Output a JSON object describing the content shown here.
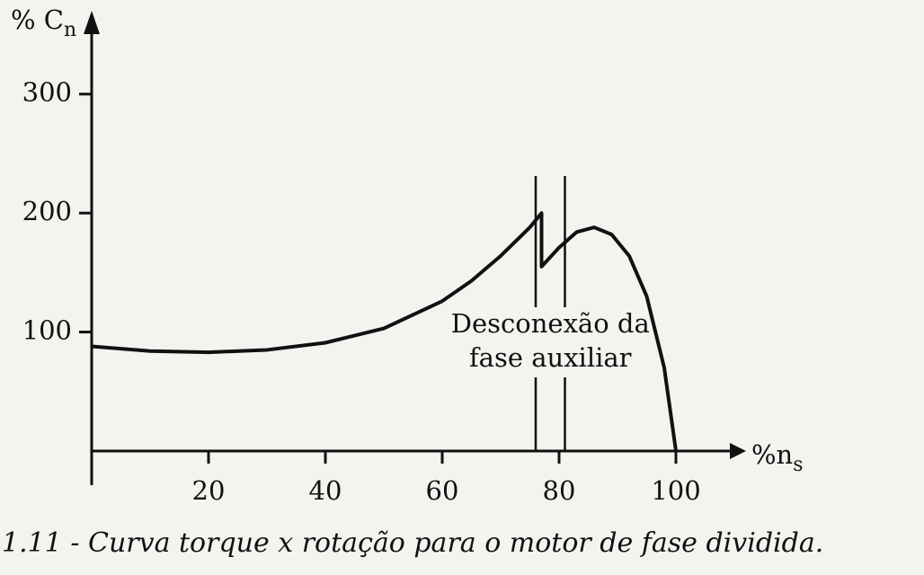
{
  "chart_data": {
    "type": "line",
    "y_label": {
      "main": "% C",
      "subscript": "n"
    },
    "x_label": {
      "main": "%n",
      "subscript": "s"
    },
    "annotation": [
      "Desconexão da",
      "fase auxiliar"
    ],
    "caption": "1.11 - Curva torque x rotação para o motor de fase dividida.",
    "x": [
      0,
      10,
      20,
      30,
      40,
      50,
      60,
      65,
      70,
      75,
      77,
      77,
      80,
      83,
      86,
      89,
      92,
      95,
      98,
      100
    ],
    "series": [
      {
        "color": "#111111",
        "values": [
          88,
          84,
          83,
          85,
          91,
          103,
          126,
          143,
          164,
          188,
          200,
          155,
          171,
          184,
          188,
          182,
          164,
          130,
          70,
          0
        ]
      }
    ],
    "marker_lines": [
      76,
      81
    ],
    "xlim": [
      0,
      112
    ],
    "ylim": [
      0,
      364
    ],
    "xticks": [
      20,
      40,
      60,
      80,
      100
    ],
    "yticks": [
      100,
      200,
      300
    ]
  }
}
